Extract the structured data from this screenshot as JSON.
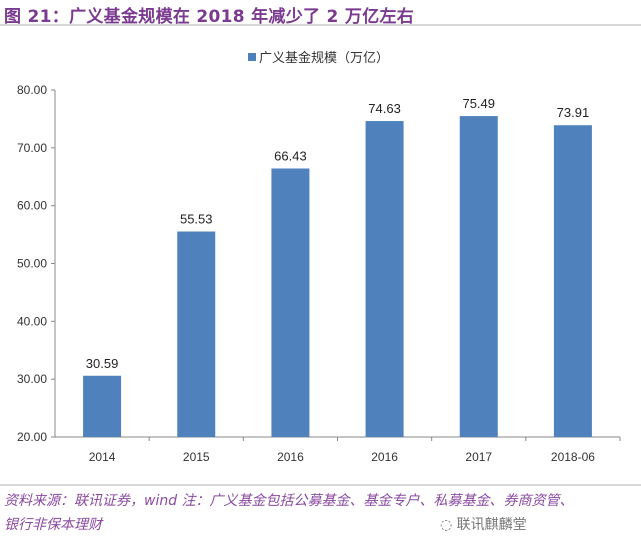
{
  "title": "图 21：广义基金规模在 2018 年减少了 2 万亿左右",
  "source_line1": "资料来源：联讯证券，wind 注：广义基金包括公募基金、基金专户、私募基金、券商资管、",
  "source_line2": "银行非保本理财",
  "watermark": "联讯麒麟堂",
  "chart_data": {
    "type": "bar",
    "categories": [
      "2014",
      "2015",
      "2016",
      "2016",
      "2017",
      "2018-06"
    ],
    "series": [
      {
        "name": "广义基金规模（万亿）",
        "values": [
          30.59,
          55.53,
          66.43,
          74.63,
          75.49,
          73.91
        ],
        "color": "#4f81bd"
      }
    ],
    "data_labels": [
      "30.59",
      "55.53",
      "66.43",
      "74.63",
      "75.49",
      "73.91"
    ],
    "ylim": [
      20,
      80
    ],
    "yticks": [
      "20.00",
      "30.00",
      "40.00",
      "50.00",
      "60.00",
      "70.00",
      "80.00"
    ],
    "grid": false,
    "legend": "top-center"
  }
}
